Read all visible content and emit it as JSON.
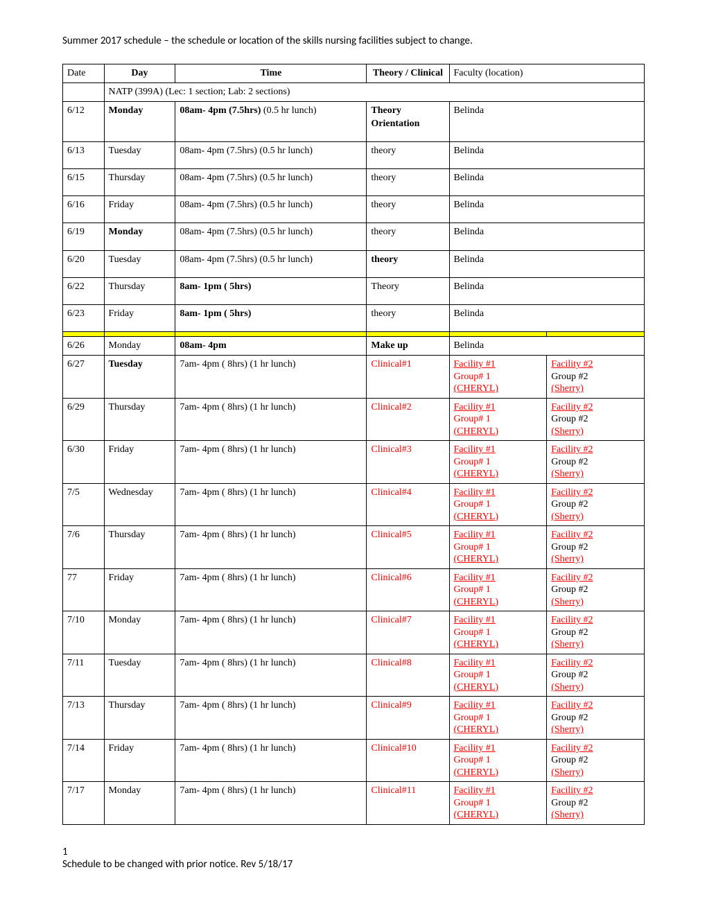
{
  "title": "Summer 2017 schedule – the schedule or location of the skills nursing facilities subject to change.",
  "footer_page": "1",
  "footer_note": "Schedule to be changed with prior notice. Rev 5/18/17",
  "columns": {
    "date": "Date",
    "day": "Day",
    "time": "Time",
    "theory": "Theory / Clinical",
    "faculty": "Faculty (location)"
  },
  "section": "NATP (399A) (Lec: 1 section; Lab: 2 sections)",
  "theory_rows": [
    {
      "date": "6/12",
      "day": "Monday",
      "day_bold": true,
      "time": "<b>08am- 4pm (7.5hrs)</b> (0.5 hr lunch)",
      "theory": "<b>Theory Orientation</b>",
      "faculty": "Belinda",
      "tall": true
    },
    {
      "date": "6/13",
      "day": "Tuesday",
      "time": "08am- 4pm (7.5hrs) (0.5 hr lunch)",
      "theory": "theory",
      "faculty": "Belinda",
      "tall": true
    },
    {
      "date": "6/15",
      "day": "Thursday",
      "time": "08am- 4pm (7.5hrs) (0.5 hr lunch)",
      "theory": "theory",
      "faculty": "Belinda",
      "tall": true
    },
    {
      "date": "6/16",
      "day": "Friday",
      "time": "08am- 4pm (7.5hrs) (0.5 hr lunch)",
      "theory": "theory",
      "faculty": "Belinda",
      "tall": true
    },
    {
      "date": "6/19",
      "day": "Monday",
      "day_bold": true,
      "time": "08am- 4pm (7.5hrs) (0.5 hr lunch)",
      "theory": "theory",
      "faculty": "Belinda",
      "tall": true
    },
    {
      "date": "6/20",
      "day": "Tuesday",
      "time": "08am- 4pm (7.5hrs) (0.5 hr lunch)",
      "theory": "<b>theory</b>",
      "faculty": "Belinda",
      "tall": true
    },
    {
      "date": "6/22",
      "day": "Thursday",
      "time": "<b>8am- 1pm ( 5hrs)</b>",
      "theory": "Theory",
      "faculty": "Belinda",
      "tall": true
    },
    {
      "date": "6/23",
      "day": "Friday",
      "time": "<b>8am- 1pm ( 5hrs)</b>",
      "theory": "theory",
      "faculty": "Belinda",
      "tall": true
    }
  ],
  "makeup": {
    "date": "6/26",
    "day": "Monday",
    "time": "<b>08am- 4pm</b>",
    "theory": "<b>Make up</b>",
    "faculty": "Belinda"
  },
  "clinical_rows": [
    {
      "date": "6/27",
      "day": "Tuesday",
      "day_bold": true,
      "n": "1"
    },
    {
      "date": "6/29",
      "day": "Thursday",
      "n": "2"
    },
    {
      "date": "6/30",
      "day": "Friday",
      "n": "3"
    },
    {
      "date": "7/5",
      "day": "Wednesday",
      "n": "4"
    },
    {
      "date": "7/6",
      "day": "Thursday",
      "n": "5"
    },
    {
      "date": "77",
      "day": "Friday",
      "n": "6"
    },
    {
      "date": "7/10",
      "day": "Monday",
      "n": "7"
    },
    {
      "date": "7/11",
      "day": "Tuesday",
      "n": "8"
    },
    {
      "date": "7/13",
      "day": "Thursday",
      "n": "9"
    },
    {
      "date": "7/14",
      "day": "Friday",
      "n": "10"
    },
    {
      "date": "7/17",
      "day": "Monday",
      "n": "11"
    }
  ],
  "clinical_time": "7am- 4pm ( 8hrs) (1 hr lunch)",
  "clinical_label": "Clinical#",
  "facility1": {
    "line1": "Facility #1",
    "line2": "Group# 1",
    "line3": "(CHERYL)"
  },
  "facility2": {
    "line1": "Facility #2",
    "line2": "Group #2",
    "line3": "(Sherry)"
  }
}
